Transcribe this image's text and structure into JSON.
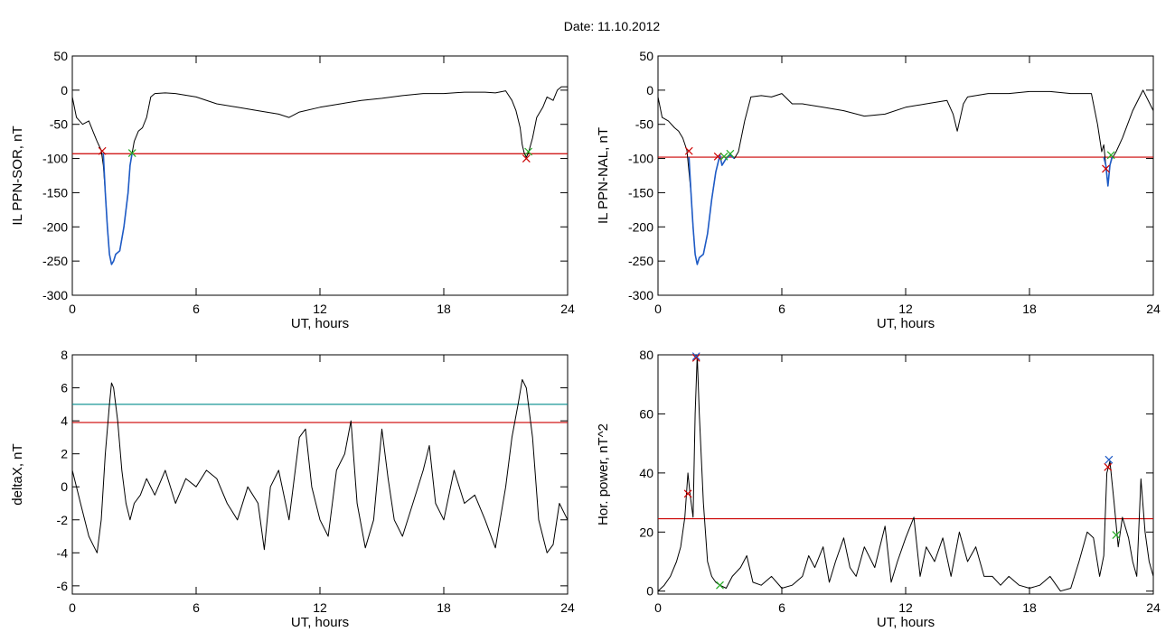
{
  "figure": {
    "title": "Date:  11.10.2012"
  },
  "chart_data": [
    {
      "id": "sor",
      "type": "line",
      "xlabel": "UT, hours",
      "ylabel": "IL PPN-SOR, nT",
      "xlim": [
        0,
        24
      ],
      "ylim": [
        -300,
        50
      ],
      "xticks": [
        0,
        6,
        12,
        18,
        24
      ],
      "yticks": [
        -300,
        -250,
        -200,
        -150,
        -100,
        -50,
        0,
        50
      ],
      "series": [
        {
          "color": "#000000",
          "x": [
            0,
            0.2,
            0.5,
            0.8,
            1.0,
            1.2,
            1.4,
            1.5,
            1.6,
            1.7,
            1.8,
            1.9,
            2.0,
            2.1,
            2.3,
            2.5,
            2.7,
            2.8,
            2.9,
            3.0,
            3.2,
            3.4,
            3.6,
            3.8,
            4.0,
            4.5,
            5,
            6,
            7,
            8,
            9,
            10,
            10.5,
            11,
            12,
            13,
            14,
            15,
            16,
            17,
            18,
            19,
            20,
            20.5,
            21,
            21.3,
            21.5,
            21.7,
            21.8,
            21.9,
            22.0,
            22.1,
            22.3,
            22.5,
            22.8,
            23,
            23.3,
            23.5,
            23.7,
            24
          ],
          "y": [
            -10,
            -40,
            -50,
            -45,
            -60,
            -75,
            -88,
            -110,
            -150,
            -200,
            -240,
            -255,
            -250,
            -240,
            -235,
            -200,
            -150,
            -110,
            -92,
            -75,
            -60,
            -55,
            -40,
            -10,
            -5,
            -4,
            -5,
            -10,
            -20,
            -25,
            -30,
            -35,
            -40,
            -32,
            -25,
            -20,
            -15,
            -12,
            -8,
            -5,
            -5,
            -3,
            -3,
            -4,
            -1,
            -15,
            -30,
            -55,
            -80,
            -92,
            -98,
            -92,
            -70,
            -40,
            -25,
            -10,
            -15,
            0,
            5,
            5
          ]
        },
        {
          "color": "#1e5bc6",
          "x": [
            1.5,
            1.6,
            1.7,
            1.8,
            1.9,
            2.0,
            2.1,
            2.3,
            2.5,
            2.7,
            2.8,
            2.9
          ],
          "y": [
            -92,
            -150,
            -200,
            -240,
            -255,
            -250,
            -240,
            -235,
            -200,
            -150,
            -110,
            -92
          ]
        }
      ],
      "hlines": [
        {
          "y": -93,
          "color": "#cc0000"
        }
      ],
      "markers": [
        {
          "x": 1.45,
          "y": -89,
          "color": "#cc0000"
        },
        {
          "x": 2.9,
          "y": -92,
          "color": "#22aa22"
        },
        {
          "x": 22.0,
          "y": -100,
          "color": "#cc0000"
        },
        {
          "x": 22.1,
          "y": -90,
          "color": "#22aa22"
        }
      ]
    },
    {
      "id": "nal",
      "type": "line",
      "xlabel": "UT, hours",
      "ylabel": "IL PPN-NAL, nT",
      "xlim": [
        0,
        24
      ],
      "ylim": [
        -300,
        50
      ],
      "xticks": [
        0,
        6,
        12,
        18,
        24
      ],
      "yticks": [
        -300,
        -250,
        -200,
        -150,
        -100,
        -50,
        0,
        50
      ],
      "series": [
        {
          "color": "#000000",
          "x": [
            0,
            0.2,
            0.5,
            0.8,
            1.0,
            1.2,
            1.4,
            1.6,
            1.7,
            1.8,
            1.9,
            2.0,
            2.2,
            2.4,
            2.6,
            2.8,
            3.0,
            3.1,
            3.3,
            3.5,
            3.7,
            3.9,
            4.2,
            4.5,
            5,
            5.5,
            6,
            6.5,
            7,
            8,
            9,
            10,
            11,
            12,
            13,
            14,
            14.3,
            14.5,
            14.8,
            15,
            16,
            17,
            18,
            19,
            20,
            21,
            21.3,
            21.5,
            21.6,
            21.7,
            21.8,
            21.9,
            22.0,
            22.2,
            22.5,
            23,
            23.5,
            24
          ],
          "y": [
            -10,
            -40,
            -45,
            -55,
            -60,
            -70,
            -88,
            -150,
            -200,
            -240,
            -255,
            -245,
            -240,
            -210,
            -160,
            -120,
            -95,
            -110,
            -100,
            -95,
            -100,
            -90,
            -45,
            -10,
            -8,
            -10,
            -5,
            -20,
            -20,
            -25,
            -30,
            -38,
            -35,
            -25,
            -20,
            -15,
            -35,
            -60,
            -20,
            -10,
            -5,
            -5,
            -2,
            -2,
            -5,
            -5,
            -50,
            -90,
            -80,
            -110,
            -140,
            -110,
            -100,
            -90,
            -70,
            -30,
            0,
            -30
          ]
        },
        {
          "color": "#1e5bc6",
          "x": [
            1.5,
            1.6,
            1.7,
            1.8,
            1.9,
            2.0,
            2.2,
            2.4,
            2.6,
            2.8,
            3.0,
            3.1,
            3.3,
            3.5,
            3.7
          ],
          "y": [
            -98,
            -150,
            -200,
            -240,
            -255,
            -245,
            -240,
            -210,
            -160,
            -120,
            -95,
            -110,
            -100,
            -95,
            -100
          ]
        },
        {
          "color": "#1e5bc6",
          "x": [
            21.6,
            21.7,
            21.8,
            21.9,
            22.0
          ],
          "y": [
            -98,
            -110,
            -140,
            -110,
            -98
          ]
        }
      ],
      "hlines": [
        {
          "y": -98,
          "color": "#cc0000"
        }
      ],
      "markers": [
        {
          "x": 1.5,
          "y": -89,
          "color": "#cc0000"
        },
        {
          "x": 2.9,
          "y": -97,
          "color": "#cc0000"
        },
        {
          "x": 3.2,
          "y": -97,
          "color": "#22aa22"
        },
        {
          "x": 3.5,
          "y": -93,
          "color": "#22aa22"
        },
        {
          "x": 21.7,
          "y": -115,
          "color": "#cc0000"
        },
        {
          "x": 21.95,
          "y": -95,
          "color": "#22aa22"
        }
      ]
    },
    {
      "id": "deltax",
      "type": "line",
      "xlabel": "UT, hours",
      "ylabel": "deltaX, nT",
      "xlim": [
        0,
        24
      ],
      "ylim": [
        -6.5,
        8
      ],
      "xticks": [
        0,
        6,
        12,
        18,
        24
      ],
      "yticks": [
        -6,
        -4,
        -2,
        0,
        2,
        4,
        6,
        8
      ],
      "series": [
        {
          "color": "#000000",
          "x": [
            0,
            0.2,
            0.4,
            0.6,
            0.8,
            1.0,
            1.2,
            1.4,
            1.6,
            1.8,
            1.9,
            2.0,
            2.2,
            2.4,
            2.6,
            2.8,
            3.0,
            3.3,
            3.6,
            4.0,
            4.5,
            5,
            5.5,
            6,
            6.5,
            7,
            7.5,
            8,
            8.5,
            9,
            9.3,
            9.6,
            10,
            10.5,
            11,
            11.3,
            11.6,
            12,
            12.4,
            12.8,
            13.2,
            13.5,
            13.8,
            14.2,
            14.6,
            15,
            15.3,
            15.6,
            16,
            16.5,
            17,
            17.3,
            17.6,
            18,
            18.5,
            19,
            19.5,
            20,
            20.5,
            21,
            21.3,
            21.6,
            21.8,
            22,
            22.3,
            22.6,
            23,
            23.3,
            23.6,
            24
          ],
          "y": [
            1,
            0,
            -1,
            -2,
            -3,
            -3.5,
            -4,
            -2,
            2,
            5,
            6.3,
            6,
            4,
            1,
            -1,
            -2,
            -1,
            -0.5,
            0.5,
            -0.5,
            1,
            -1,
            0.5,
            0,
            1,
            0.5,
            -1,
            -2,
            0,
            -1,
            -3.8,
            0,
            1,
            -2,
            3,
            3.5,
            0,
            -2,
            -3,
            1,
            2,
            4,
            -1,
            -3.7,
            -2,
            3.5,
            0.5,
            -2,
            -3,
            -1,
            1,
            2.5,
            -1,
            -2,
            1,
            -1,
            -0.5,
            -2,
            -3.7,
            0,
            3,
            5,
            6.5,
            6,
            3,
            -2,
            -4,
            -3.5,
            -1,
            -2
          ]
        }
      ],
      "hlines": [
        {
          "y": 5,
          "color": "#008b8b"
        },
        {
          "y": 3.9,
          "color": "#cc0000"
        }
      ],
      "markers": []
    },
    {
      "id": "power",
      "type": "line",
      "xlabel": "UT, hours",
      "ylabel": "Hor. power, nT^2",
      "xlim": [
        0,
        24
      ],
      "ylim": [
        -1,
        80
      ],
      "xticks": [
        0,
        6,
        12,
        18,
        24
      ],
      "yticks": [
        0,
        20,
        40,
        60,
        80
      ],
      "series": [
        {
          "color": "#000000",
          "x": [
            0,
            0.3,
            0.6,
            0.9,
            1.1,
            1.3,
            1.45,
            1.55,
            1.7,
            1.8,
            1.9,
            2.0,
            2.2,
            2.4,
            2.6,
            2.8,
            3.0,
            3.3,
            3.6,
            4.0,
            4.3,
            4.6,
            5,
            5.5,
            6,
            6.5,
            7,
            7.3,
            7.6,
            8,
            8.3,
            8.6,
            9,
            9.3,
            9.6,
            10,
            10.5,
            11,
            11.3,
            11.6,
            12,
            12.4,
            12.7,
            13,
            13.4,
            13.8,
            14.2,
            14.6,
            15,
            15.4,
            15.8,
            16.2,
            16.6,
            17,
            17.5,
            18,
            18.5,
            19,
            19.5,
            20,
            20.4,
            20.8,
            21.1,
            21.4,
            21.6,
            21.75,
            21.9,
            22.1,
            22.3,
            22.5,
            22.8,
            23,
            23.2,
            23.4,
            23.6,
            23.8,
            24
          ],
          "y": [
            0,
            2,
            5,
            10,
            15,
            25,
            40,
            33,
            25,
            60,
            80,
            60,
            30,
            10,
            5,
            3,
            2,
            1,
            5,
            8,
            12,
            3,
            2,
            5,
            1,
            2,
            5,
            12,
            8,
            15,
            3,
            10,
            18,
            8,
            5,
            15,
            8,
            22,
            3,
            10,
            18,
            25,
            5,
            15,
            10,
            18,
            5,
            20,
            10,
            15,
            5,
            5,
            2,
            5,
            2,
            1,
            2,
            5,
            0,
            1,
            10,
            20,
            18,
            5,
            12,
            40,
            44,
            30,
            15,
            25,
            18,
            10,
            5,
            38,
            20,
            10,
            5
          ]
        }
      ],
      "hlines": [
        {
          "y": 24.5,
          "color": "#cc0000"
        }
      ],
      "markers": [
        {
          "x": 1.45,
          "y": 33,
          "color": "#cc0000"
        },
        {
          "x": 1.85,
          "y": 79,
          "color": "#cc0000"
        },
        {
          "x": 1.85,
          "y": 79.5,
          "color": "#1e5bc6"
        },
        {
          "x": 3.0,
          "y": 2,
          "color": "#22aa22"
        },
        {
          "x": 21.8,
          "y": 42,
          "color": "#cc0000"
        },
        {
          "x": 21.85,
          "y": 44.5,
          "color": "#1e5bc6"
        },
        {
          "x": 22.2,
          "y": 19,
          "color": "#22aa22"
        }
      ]
    }
  ]
}
